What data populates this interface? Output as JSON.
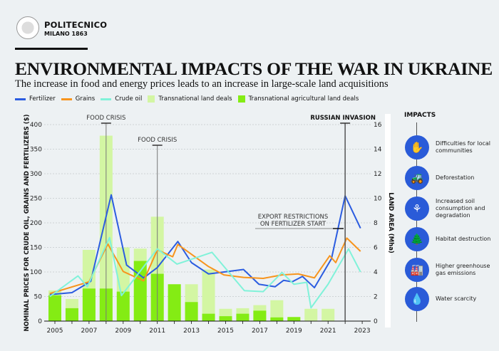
{
  "header": {
    "logo_name": "POLITECNICO",
    "logo_sub": "MILANO 1863",
    "title": "ENVIRONMENTAL IMPACTS OF THE WAR IN UKRAINE",
    "subtitle": "The increase in food and energy prices leads to an increase in large-scale land acquisitions"
  },
  "chart_data": {
    "type": "bar+line",
    "title": "",
    "ylabel_left": "NOMINAL PRICES FOR CRUDE OIL, GRAINS AND FERTILIZERS ($)",
    "ylabel_right": "LAND AREA (Mha)",
    "xlim": [
      2005,
      2023
    ],
    "ylim_left": [
      0,
      400
    ],
    "ylim_right": [
      0,
      16
    ],
    "x_ticks": [
      "2005",
      "2007",
      "2009",
      "2011",
      "2013",
      "2015",
      "2017",
      "2019",
      "2021",
      "2023"
    ],
    "y_ticks_left": [
      "0",
      "50",
      "100",
      "150",
      "200",
      "250",
      "300",
      "350",
      "400"
    ],
    "y_ticks_right": [
      "0",
      "2",
      "4",
      "6",
      "8",
      "10",
      "12",
      "14",
      "16"
    ],
    "grid": true,
    "legend_position": "top",
    "colors": {
      "Fertilizer": "#2b5ce0",
      "Grains": "#f7941d",
      "Crude oil": "#80f2d9",
      "Transnational land deals": "#d3f6a3",
      "Transnational agricultural land deals": "#84ec14"
    },
    "line_series": [
      {
        "name": "Fertilizer",
        "axis": "left",
        "points": [
          [
            2004.7,
            54
          ],
          [
            2006.0,
            58
          ],
          [
            2007.1,
            81
          ],
          [
            2008.3,
            257
          ],
          [
            2009.2,
            114
          ],
          [
            2010.2,
            88
          ],
          [
            2011.0,
            109
          ],
          [
            2012.2,
            162
          ],
          [
            2013.0,
            119
          ],
          [
            2014.0,
            96
          ],
          [
            2016.05,
            105
          ],
          [
            2016.95,
            75
          ],
          [
            2017.9,
            70
          ],
          [
            2018.4,
            83
          ],
          [
            2018.9,
            80
          ],
          [
            2019.5,
            91
          ],
          [
            2020.2,
            68
          ],
          [
            2021.2,
            127
          ],
          [
            2022.0,
            255
          ],
          [
            2022.9,
            189
          ]
        ]
      },
      {
        "name": "Grains",
        "axis": "left",
        "points": [
          [
            2004.7,
            56
          ],
          [
            2007.0,
            80
          ],
          [
            2008.1,
            157
          ],
          [
            2009.0,
            101
          ],
          [
            2010.2,
            82
          ],
          [
            2011.0,
            145
          ],
          [
            2011.9,
            131
          ],
          [
            2012.2,
            156
          ],
          [
            2014.0,
            111
          ],
          [
            2014.9,
            94
          ],
          [
            2016.05,
            89
          ],
          [
            2017.2,
            87
          ],
          [
            2018.3,
            94
          ],
          [
            2019.25,
            96
          ],
          [
            2020.2,
            88
          ],
          [
            2021.1,
            133
          ],
          [
            2021.45,
            119
          ],
          [
            2022.1,
            169
          ],
          [
            2022.9,
            142
          ]
        ]
      },
      {
        "name": "Crude oil",
        "axis": "left",
        "points": [
          [
            2004.7,
            50
          ],
          [
            2006.35,
            92
          ],
          [
            2006.9,
            70
          ],
          [
            2008.2,
            170
          ],
          [
            2008.9,
            52
          ],
          [
            2011.0,
            147
          ],
          [
            2012.15,
            116
          ],
          [
            2014.2,
            140
          ],
          [
            2016.1,
            62
          ],
          [
            2017.2,
            60
          ],
          [
            2018.3,
            99
          ],
          [
            2019.0,
            75
          ],
          [
            2019.75,
            79
          ],
          [
            2020.0,
            27
          ],
          [
            2021.0,
            75
          ],
          [
            2022.2,
            147
          ],
          [
            2022.9,
            100
          ]
        ]
      }
    ],
    "bar_series": [
      {
        "name": "Transnational land deals",
        "axis": "right",
        "categories": [
          2005,
          2006,
          2007,
          2008,
          2009,
          2010,
          2011,
          2012,
          2013,
          2014,
          2015,
          2016,
          2017,
          2018,
          2019,
          2020,
          2021
        ],
        "values": [
          2.5,
          1.8,
          5.8,
          15.1,
          6.0,
          5.9,
          8.5,
          3.0,
          3.0,
          4.2,
          1.0,
          1.05,
          1.3,
          1.7,
          0.33,
          1.0,
          1.0
        ]
      },
      {
        "name": "Transnational agricultural land deals",
        "axis": "right",
        "categories": [
          2005,
          2006,
          2007,
          2008,
          2009,
          2010,
          2011,
          2012,
          2013,
          2014,
          2015,
          2016,
          2017,
          2018,
          2019,
          2020,
          2021
        ],
        "values": [
          2.1,
          1.05,
          2.65,
          2.65,
          2.4,
          4.9,
          3.85,
          3.0,
          1.55,
          0.6,
          0.4,
          0.6,
          0.85,
          0.3,
          0.33,
          0,
          0
        ]
      }
    ],
    "annotations": [
      {
        "text": "FOOD CRISIS",
        "x": 2008
      },
      {
        "text": "FOOD CRISIS",
        "x": 2011
      },
      {
        "text": "RUSSIAN INVASION",
        "x": 2022
      },
      {
        "text": "EXPORT RESTRICTIONS ON FERTILIZER START",
        "x": 2021.7
      }
    ]
  },
  "impacts": {
    "title": "IMPACTS",
    "items": [
      {
        "label": "Difficulties for local communities",
        "icon": "hands-community-icon",
        "glyph": "✋"
      },
      {
        "label": "Deforestation",
        "icon": "excavator-icon",
        "glyph": "🚜"
      },
      {
        "label": "Increased soil consumption and degradation",
        "icon": "soil-roots-icon",
        "glyph": "⚘"
      },
      {
        "label": "Habitat destruction",
        "icon": "trees-icon",
        "glyph": "🌲"
      },
      {
        "label": "Higher greenhouse gas emissions",
        "icon": "factory-icon",
        "glyph": "🏭"
      },
      {
        "label": "Water scarcity",
        "icon": "faucet-hand-icon",
        "glyph": "💧"
      }
    ]
  }
}
